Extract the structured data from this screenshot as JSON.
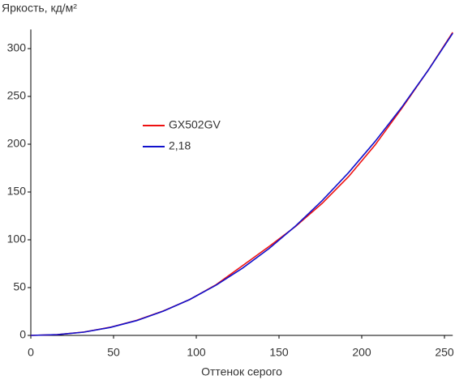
{
  "chart_data": {
    "type": "line",
    "title": "Яркость, кд/м²",
    "x_label": "Оттенок серого",
    "x": [
      0,
      16,
      32,
      48,
      64,
      80,
      96,
      112,
      128,
      144,
      160,
      176,
      192,
      208,
      224,
      240,
      255
    ],
    "series": [
      {
        "name": "GX502GV",
        "color": "#ee1111",
        "values": [
          0,
          0.8,
          3.5,
          8.5,
          15.8,
          25.5,
          37.5,
          53,
          73,
          93,
          114,
          138,
          166,
          199,
          237,
          277,
          317
        ]
      },
      {
        "name": "2,18",
        "color": "#1111cc",
        "values": [
          0,
          0.76,
          3.4,
          8.3,
          15.5,
          25.3,
          37.5,
          52.6,
          70.4,
          90.9,
          114.4,
          140.8,
          170.2,
          202.7,
          238.2,
          276.9,
          316
        ]
      }
    ],
    "xlim": [
      0,
      255
    ],
    "ylim": [
      0,
      320
    ],
    "xticks": [
      0,
      50,
      100,
      150,
      200,
      250
    ],
    "yticks": [
      0,
      50,
      100,
      150,
      200,
      250,
      300
    ],
    "grid": false
  }
}
